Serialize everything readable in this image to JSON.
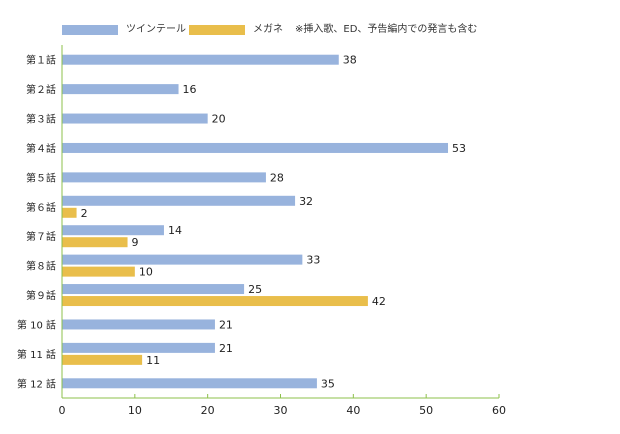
{
  "chart_data": {
    "type": "bar",
    "orientation": "horizontal",
    "categories": [
      "第１話",
      "第２話",
      "第３話",
      "第４話",
      "第５話",
      "第６話",
      "第７話",
      "第８話",
      "第９話",
      "第 10 話",
      "第 11 話",
      "第 12 話"
    ],
    "series": [
      {
        "name": "ツインテール",
        "color": "#98B3DD",
        "values": [
          38,
          16,
          20,
          53,
          28,
          32,
          14,
          33,
          25,
          21,
          21,
          35
        ]
      },
      {
        "name": "メガネ",
        "color": "#E9BE4B",
        "values": [
          null,
          null,
          null,
          null,
          null,
          2,
          9,
          10,
          42,
          null,
          11,
          null
        ]
      }
    ],
    "xlim": [
      0,
      60
    ],
    "xticks": [
      0,
      10,
      20,
      30,
      40,
      50,
      60
    ],
    "grid": false,
    "legend": "top-left",
    "note": "※挿入歌、ED、予告編内での発言も含む",
    "axis_color": "#8DC04B"
  }
}
